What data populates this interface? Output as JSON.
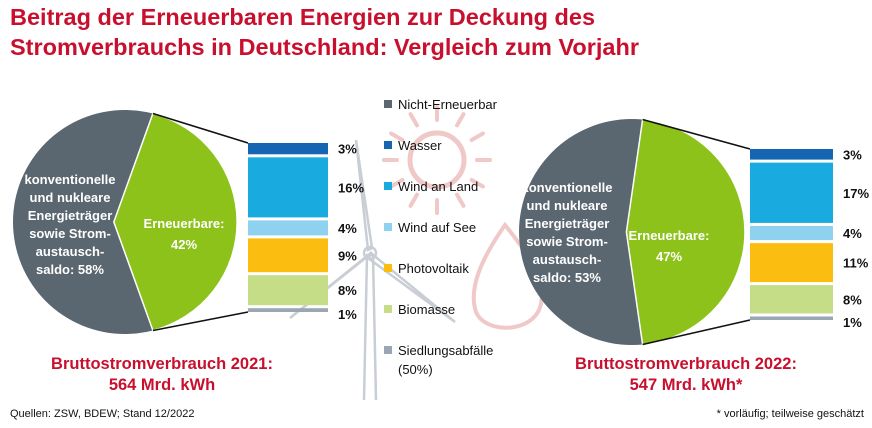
{
  "title_line1": "Beitrag der Erneuerbaren Energien zur Deckung des",
  "title_line2": "Stromverbrauchs in Deutschland: Vergleich zum Vorjahr",
  "source_note": "Quellen: ZSW, BDEW; Stand 12/2022",
  "footnote": "* vorläufig; teilweise geschätzt",
  "colors": {
    "title": "#c8102e",
    "non_renewable": "#5a6670",
    "renewable": "#8cc21a",
    "Wasser": "#1565b3",
    "Wind an Land": "#19abe0",
    "Wind auf See": "#8fd2ef",
    "Photovoltaik": "#fbbe10",
    "Biomasse": "#c6dd88",
    "Siedlungsabfälle": "#9aa6b2",
    "background_art": "#f0c8c8"
  },
  "chart_data": [
    {
      "type": "pie",
      "caption_line1": "Bruttostromverbrauch 2021:",
      "caption_line2": "564 Mrd. kWh",
      "slices": [
        {
          "name": "Erneuerbare",
          "value": 42,
          "label_lines": [
            "Erneuerbare:",
            "42%"
          ]
        },
        {
          "name": "Nicht-Erneuerbar",
          "value": 58,
          "label_lines": [
            "konventionelle",
            "und nukleare",
            "Energieträger",
            "sowie Strom-",
            "austausch-",
            "saldo: 58%"
          ]
        }
      ],
      "breakdown": [
        {
          "category": "Wasser",
          "value": 3,
          "label": "3%"
        },
        {
          "category": "Wind an Land",
          "value": 16,
          "label": "16%"
        },
        {
          "category": "Wind auf See",
          "value": 4,
          "label": "4%"
        },
        {
          "category": "Photovoltaik",
          "value": 9,
          "label": "9%"
        },
        {
          "category": "Biomasse",
          "value": 8,
          "label": "8%"
        },
        {
          "category": "Siedlungsabfälle",
          "value": 1,
          "label": "1%"
        }
      ]
    },
    {
      "type": "pie",
      "caption_line1": "Bruttostromverbrauch 2022:",
      "caption_line2": "547 Mrd. kWh*",
      "slices": [
        {
          "name": "Erneuerbare",
          "value": 47,
          "label_lines": [
            "Erneuerbare:",
            "47%"
          ]
        },
        {
          "name": "Nicht-Erneuerbar",
          "value": 53,
          "label_lines": [
            "konventionelle",
            "und nukleare",
            "Energieträger",
            "sowie Strom-",
            "austausch-",
            "saldo: 53%"
          ]
        }
      ],
      "breakdown": [
        {
          "category": "Wasser",
          "value": 3,
          "label": "3%"
        },
        {
          "category": "Wind an Land",
          "value": 17,
          "label": "17%"
        },
        {
          "category": "Wind auf See",
          "value": 4,
          "label": "4%"
        },
        {
          "category": "Photovoltaik",
          "value": 11,
          "label": "11%"
        },
        {
          "category": "Biomasse",
          "value": 8,
          "label": "8%"
        },
        {
          "category": "Siedlungsabfälle",
          "value": 1,
          "label": "1%"
        }
      ]
    }
  ],
  "legend": [
    {
      "name": "Nicht-Erneuerbar",
      "label_lines": [
        "Nicht-Erneuerbar"
      ]
    },
    {
      "name": "Wasser",
      "label_lines": [
        "Wasser"
      ]
    },
    {
      "name": "Wind an Land",
      "label_lines": [
        "Wind an Land"
      ]
    },
    {
      "name": "Wind auf See",
      "label_lines": [
        "Wind auf See"
      ]
    },
    {
      "name": "Photovoltaik",
      "label_lines": [
        "Photovoltaik"
      ]
    },
    {
      "name": "Biomasse",
      "label_lines": [
        "Biomasse"
      ]
    },
    {
      "name": "Siedlungsabfälle",
      "label_lines": [
        "Siedlungsabfälle",
        "(50%)"
      ]
    }
  ]
}
